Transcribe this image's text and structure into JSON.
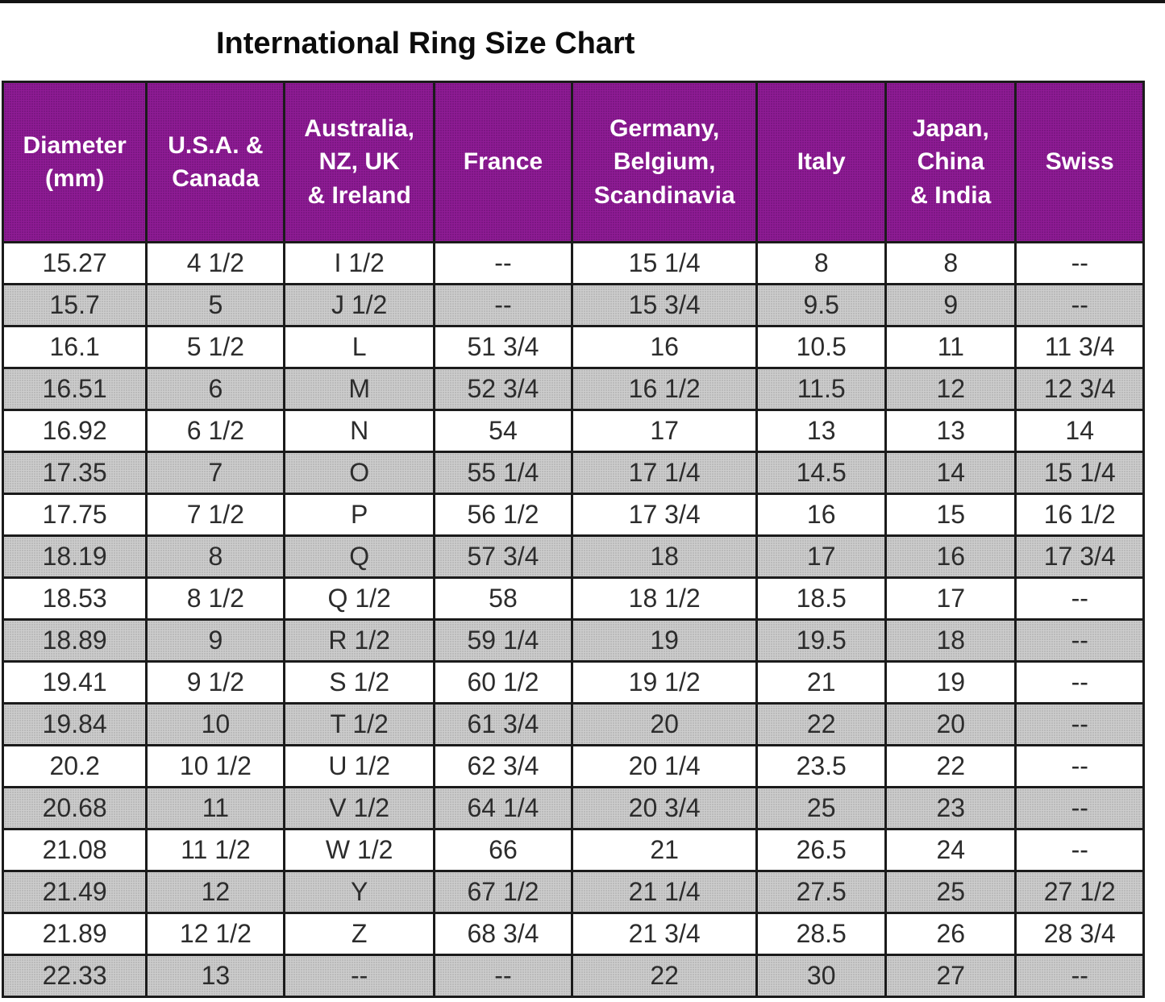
{
  "title": "International Ring Size Chart",
  "colors": {
    "header_bg": "#8F1C95",
    "header_text": "#FFFFFF",
    "row_bg": "#FFFFFF",
    "row_alt_bg": "#CDCDCD",
    "border": "#1B1B1B",
    "cell_text": "#2C2C2C",
    "title_text": "#0C0C0C"
  },
  "chart_data": {
    "type": "table",
    "title": "International Ring Size Chart",
    "columns": [
      "Diameter\n(mm)",
      "U.S.A. &\nCanada",
      "Australia,\nNZ, UK\n& Ireland",
      "France",
      "Germany,\nBelgium,\nScandinavia",
      "Italy",
      "Japan,\nChina\n& India",
      "Swiss"
    ],
    "rows": [
      [
        "15.27",
        "4 1/2",
        "I 1/2",
        "--",
        "15 1/4",
        "8",
        "8",
        "--"
      ],
      [
        "15.7",
        "5",
        "J 1/2",
        "--",
        "15 3/4",
        "9.5",
        "9",
        "--"
      ],
      [
        "16.1",
        "5 1/2",
        "L",
        "51 3/4",
        "16",
        "10.5",
        "11",
        "11 3/4"
      ],
      [
        "16.51",
        "6",
        "M",
        "52 3/4",
        "16 1/2",
        "11.5",
        "12",
        "12 3/4"
      ],
      [
        "16.92",
        "6 1/2",
        "N",
        "54",
        "17",
        "13",
        "13",
        "14"
      ],
      [
        "17.35",
        "7",
        "O",
        "55 1/4",
        "17 1/4",
        "14.5",
        "14",
        "15 1/4"
      ],
      [
        "17.75",
        "7 1/2",
        "P",
        "56 1/2",
        "17 3/4",
        "16",
        "15",
        "16 1/2"
      ],
      [
        "18.19",
        "8",
        "Q",
        "57 3/4",
        "18",
        "17",
        "16",
        "17 3/4"
      ],
      [
        "18.53",
        "8 1/2",
        "Q 1/2",
        "58",
        "18 1/2",
        "18.5",
        "17",
        "--"
      ],
      [
        "18.89",
        "9",
        "R 1/2",
        "59 1/4",
        "19",
        "19.5",
        "18",
        "--"
      ],
      [
        "19.41",
        "9 1/2",
        "S 1/2",
        "60 1/2",
        "19 1/2",
        "21",
        "19",
        "--"
      ],
      [
        "19.84",
        "10",
        "T 1/2",
        "61 3/4",
        "20",
        "22",
        "20",
        "--"
      ],
      [
        "20.2",
        "10 1/2",
        "U 1/2",
        "62 3/4",
        "20 1/4",
        "23.5",
        "22",
        "--"
      ],
      [
        "20.68",
        "11",
        "V 1/2",
        "64 1/4",
        "20 3/4",
        "25",
        "23",
        "--"
      ],
      [
        "21.08",
        "11 1/2",
        "W 1/2",
        "66",
        "21",
        "26.5",
        "24",
        "--"
      ],
      [
        "21.49",
        "12",
        "Y",
        "67 1/2",
        "21 1/4",
        "27.5",
        "25",
        "27 1/2"
      ],
      [
        "21.89",
        "12 1/2",
        "Z",
        "68 3/4",
        "21 3/4",
        "28.5",
        "26",
        "28 3/4"
      ],
      [
        "22.33",
        "13",
        "--",
        "--",
        "22",
        "30",
        "27",
        "--"
      ]
    ]
  }
}
